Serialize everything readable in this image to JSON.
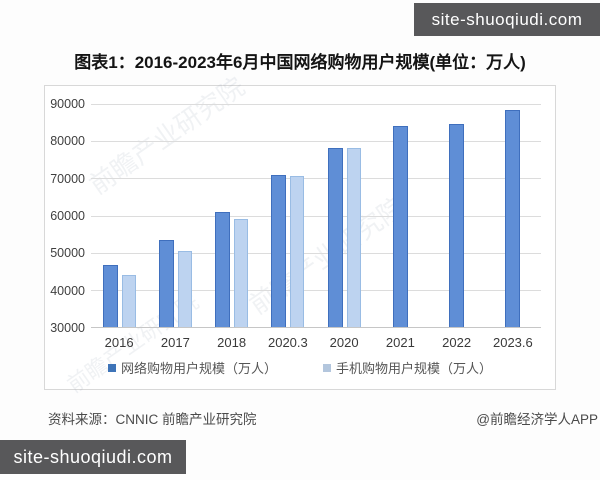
{
  "title": "图表1：2016-2023年6月中国网络购物用户规模(单位：万人)",
  "watermarks": {
    "site_badge": "site-shuoqiudi.com",
    "diagonal": "前瞻产业研究院"
  },
  "footer": {
    "source": "资料来源：CNNIC 前瞻产业研究院",
    "credit": "@前瞻经济学人APP"
  },
  "chart_data": {
    "type": "bar",
    "title": "图表1：2016-2023年6月中国网络购物用户规模(单位：万人)",
    "xlabel": "",
    "ylabel": "万人",
    "categories": [
      "2016",
      "2017",
      "2018",
      "2020.3",
      "2020",
      "2021",
      "2022",
      "2023.6"
    ],
    "series": [
      {
        "name": "网络购物用户规模（万人）",
        "color": "#5f8ed6",
        "border_color": "#3f6fbd",
        "legend_marker_color": "#3e74b8",
        "values": [
          46670,
          53332,
          61011,
          71027,
          78241,
          84210,
          84529,
          88401
        ]
      },
      {
        "name": "手机购物用户规模（万人）",
        "color": "#bdd3f0",
        "border_color": "#99bce4",
        "legend_marker_color": "#b3c6dd",
        "values": [
          44089,
          50563,
          59191,
          70749,
          78108,
          null,
          null,
          null
        ]
      }
    ],
    "ylim": [
      30000,
      90000
    ],
    "ytick_step": 10000,
    "grid": true,
    "legend_position": "bottom"
  }
}
